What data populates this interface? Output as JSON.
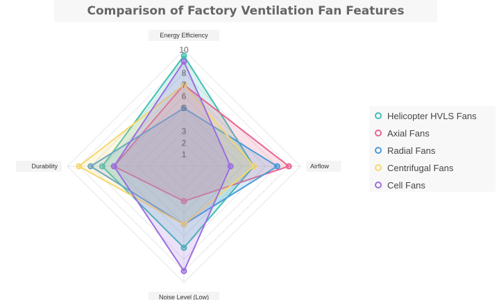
{
  "chart_data": {
    "type": "radar",
    "title": "Comparison of Factory Ventilation Fan Features",
    "axes": [
      "Energy Efficiency",
      "Airflow",
      "Noise Level (Low)",
      "Durability"
    ],
    "rmax": 10,
    "ticks": [
      1,
      2,
      3,
      5,
      6,
      7,
      8,
      10
    ],
    "tick_labels": [
      "1",
      "2",
      "3",
      "5",
      "6",
      "7",
      "8",
      "10"
    ],
    "series": [
      {
        "name": "Helicopter HVLS Fans",
        "values": [
          9.5,
          6,
          7,
          7
        ],
        "color": "#3fbfb0"
      },
      {
        "name": "Axial Fans",
        "values": [
          7,
          9,
          3,
          6
        ],
        "color": "#e8658d"
      },
      {
        "name": "Radial Fans",
        "values": [
          5,
          8,
          5,
          8
        ],
        "color": "#4a9ad8"
      },
      {
        "name": "Centrifugal Fans",
        "values": [
          7,
          6,
          5,
          9
        ],
        "color": "#f5d76e"
      },
      {
        "name": "Cell Fans",
        "values": [
          9,
          4,
          9,
          6
        ],
        "color": "#9b6ee0"
      }
    ],
    "legend_position": "right"
  }
}
